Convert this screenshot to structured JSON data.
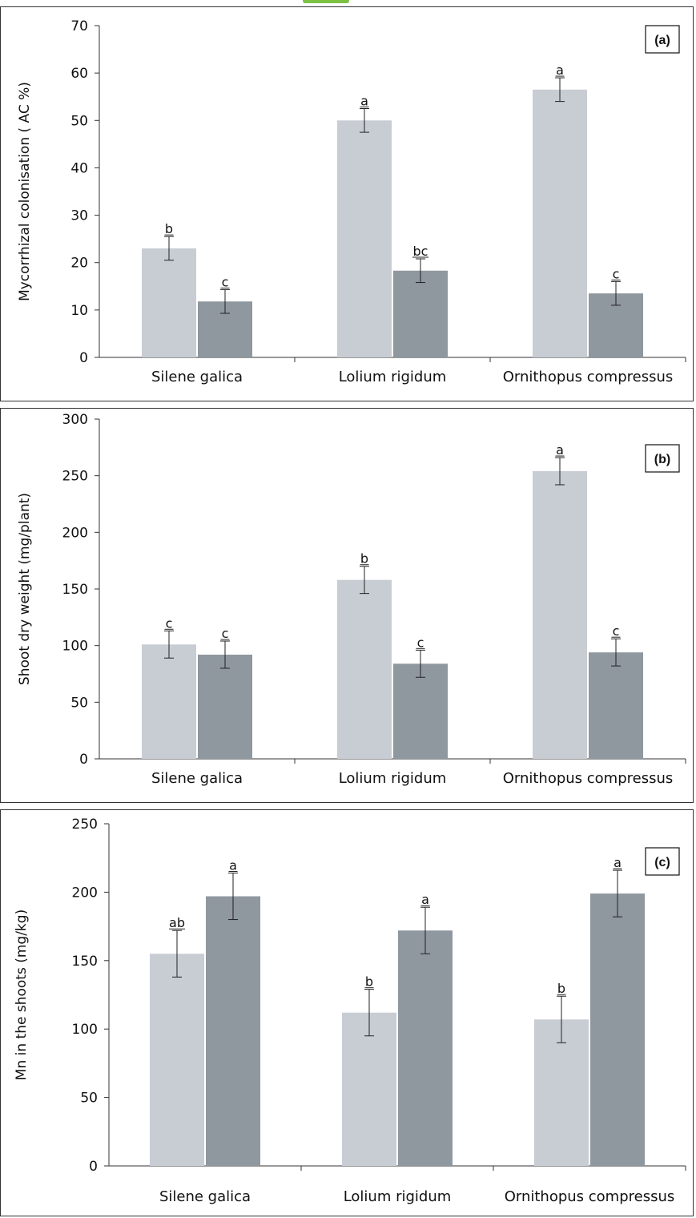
{
  "colors": {
    "series_light": "#c8ccd3",
    "series_dark": "#8f979f",
    "axis": "#333333",
    "frame": "#333333",
    "accent": "#7dc242"
  },
  "chart_data": [
    {
      "type": "bar",
      "panel_label": "(a)",
      "ylabel": "Mycorrhizal colonisation ( AC %)",
      "ylim": [
        0,
        70
      ],
      "yticks": [
        0,
        10,
        20,
        30,
        40,
        50,
        60,
        70
      ],
      "categories": [
        "Silene galica",
        "Lolium rigidum",
        "Ornithopus compressus"
      ],
      "series": [
        {
          "values": [
            23,
            50,
            56.5
          ],
          "errors": [
            2.5,
            2.5,
            2.5
          ],
          "letters": [
            "b",
            "a",
            "a"
          ]
        },
        {
          "values": [
            11.8,
            18.3,
            13.5
          ],
          "errors": [
            2.5,
            2.5,
            2.5
          ],
          "letters": [
            "c",
            "bc",
            "c"
          ]
        }
      ]
    },
    {
      "type": "bar",
      "panel_label": "(b)",
      "ylabel": "Shoot dry weight (mg/plant)",
      "ylim": [
        0,
        300
      ],
      "yticks": [
        0,
        50,
        100,
        150,
        200,
        250,
        300
      ],
      "categories": [
        "Silene galica",
        "Lolium rigidum",
        "Ornithopus compressus"
      ],
      "series": [
        {
          "values": [
            101,
            158,
            254
          ],
          "errors": [
            12,
            12,
            12
          ],
          "letters": [
            "c",
            "b",
            "a"
          ]
        },
        {
          "values": [
            92,
            84,
            94
          ],
          "errors": [
            12,
            12,
            12
          ],
          "letters": [
            "c",
            "c",
            "c"
          ]
        }
      ]
    },
    {
      "type": "bar",
      "panel_label": "(c)",
      "ylabel": "Mn in the shoots (mg/kg)",
      "ylim": [
        0,
        250
      ],
      "yticks": [
        0,
        50,
        100,
        150,
        200,
        250
      ],
      "categories": [
        "Silene galica",
        "Lolium rigidum",
        "Ornithopus compressus"
      ],
      "series": [
        {
          "values": [
            155,
            112,
            107
          ],
          "errors": [
            17,
            17,
            17
          ],
          "letters": [
            "ab",
            "b",
            "b"
          ]
        },
        {
          "values": [
            197,
            172,
            199
          ],
          "errors": [
            17,
            17,
            17
          ],
          "letters": [
            "a",
            "a",
            "a"
          ]
        }
      ]
    }
  ]
}
